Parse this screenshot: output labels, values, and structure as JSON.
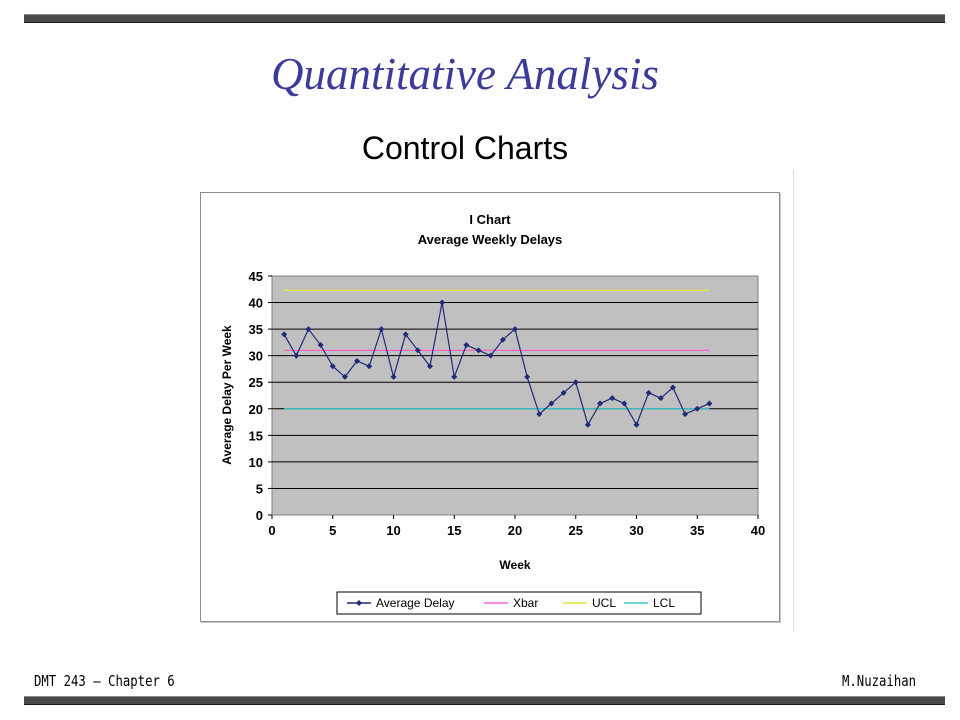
{
  "slide": {
    "title": "Quantitative Analysis",
    "subtitle": "Control Charts",
    "footer_left": "DMT 243 – Chapter 6",
    "footer_right": "M.Nuzaihan"
  },
  "chart_data": {
    "type": "line",
    "title": "I Chart",
    "subtitle": "Average Weekly Delays",
    "xlabel": "Week",
    "ylabel": "Average Delay Per Week",
    "xlim": [
      0,
      40
    ],
    "ylim": [
      0,
      45
    ],
    "x_ticks": [
      0,
      5,
      10,
      15,
      20,
      25,
      30,
      35,
      40
    ],
    "y_ticks": [
      0,
      5,
      10,
      15,
      20,
      25,
      30,
      35,
      40,
      45
    ],
    "grid": true,
    "legend_position": "bottom",
    "series": [
      {
        "name": "Average Delay",
        "color": "#1f2a78",
        "marker": "diamond",
        "x": [
          1,
          2,
          3,
          4,
          5,
          6,
          7,
          8,
          9,
          10,
          11,
          12,
          13,
          14,
          15,
          16,
          17,
          18,
          19,
          20,
          21,
          22,
          23,
          24,
          25,
          26,
          27,
          28,
          29,
          30,
          31,
          32,
          33,
          34,
          35,
          36
        ],
        "values": [
          34,
          30,
          35,
          32,
          28,
          26,
          29,
          28,
          35,
          26,
          34,
          31,
          28,
          40,
          26,
          32,
          31,
          30,
          33,
          35,
          26,
          19,
          21,
          23,
          25,
          17,
          21,
          22,
          21,
          17,
          23,
          22,
          24,
          19,
          20,
          21
        ]
      },
      {
        "name": "Xbar",
        "color": "#ff66cc",
        "x": [
          1,
          36
        ],
        "values": [
          31,
          31
        ]
      },
      {
        "name": "UCL",
        "color": "#e8e83a",
        "x": [
          1,
          36
        ],
        "values": [
          42.3,
          42.3
        ]
      },
      {
        "name": "LCL",
        "color": "#33cccc",
        "x": [
          1,
          36
        ],
        "values": [
          20,
          20
        ]
      }
    ]
  }
}
